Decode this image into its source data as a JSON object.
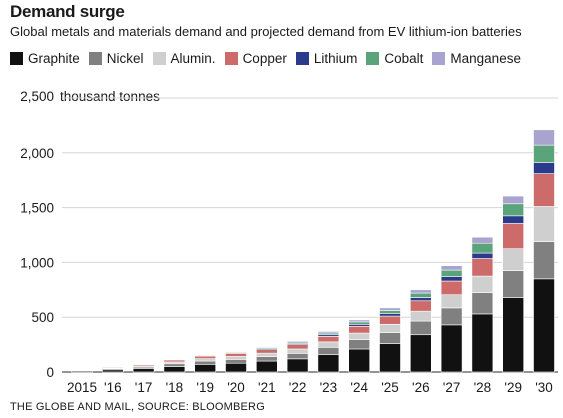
{
  "title": "Demand surge",
  "subtitle": "Global metals and materials demand and projected demand from EV lithium-ion batteries",
  "footer": "THE GLOBE AND MAIL,  SOURCE: BLOOMBERG",
  "chart_data": {
    "type": "bar",
    "stacked": true,
    "title": "Demand surge",
    "subtitle": "Global metals and materials demand and projected demand from EV lithium-ion batteries",
    "unit_label": "thousand tonnes",
    "xlabel": "",
    "ylabel": "",
    "ylim": [
      0,
      2500
    ],
    "yticks": [
      0,
      500,
      1000,
      1500,
      2000,
      2500
    ],
    "ytick_labels": [
      "0",
      "500",
      "1,000",
      "1,500",
      "2,000",
      "2,500"
    ],
    "grid": true,
    "legend_position": "top",
    "categories": [
      "2015",
      "'16",
      "'17",
      "'18",
      "'19",
      "'20",
      "'21",
      "'22",
      "'23",
      "'24",
      "'25",
      "'26",
      "'27",
      "'28",
      "'29",
      "'30"
    ],
    "series": [
      {
        "name": "Graphite",
        "color": "#111111",
        "values": [
          10,
          20,
          30,
          50,
          70,
          80,
          100,
          120,
          160,
          210,
          260,
          340,
          430,
          530,
          680,
          850
        ]
      },
      {
        "name": "Nickel",
        "color": "#808080",
        "values": [
          5,
          10,
          15,
          25,
          30,
          35,
          40,
          50,
          65,
          85,
          100,
          125,
          155,
          195,
          245,
          340
        ]
      },
      {
        "name": "Alumin.",
        "color": "#cfcfcf",
        "values": [
          3,
          6,
          10,
          17,
          22,
          27,
          32,
          40,
          50,
          60,
          75,
          90,
          120,
          150,
          200,
          320
        ]
      },
      {
        "name": "Copper",
        "color": "#cd6b6b",
        "values": [
          4,
          7,
          11,
          18,
          23,
          28,
          32,
          40,
          50,
          62,
          75,
          95,
          125,
          160,
          230,
          300
        ]
      },
      {
        "name": "Lithium",
        "color": "#2c3a8c",
        "values": [
          1,
          2,
          3,
          5,
          6,
          7,
          9,
          11,
          15,
          18,
          22,
          30,
          40,
          50,
          70,
          100
        ]
      },
      {
        "name": "Cobalt",
        "color": "#5ba37a",
        "values": [
          1,
          2,
          3,
          4,
          6,
          7,
          9,
          12,
          16,
          22,
          30,
          40,
          60,
          90,
          110,
          160
        ]
      },
      {
        "name": "Manganese",
        "color": "#a8a4cf",
        "values": [
          1,
          2,
          3,
          4,
          5,
          6,
          7,
          9,
          14,
          18,
          23,
          30,
          40,
          55,
          70,
          140
        ]
      }
    ]
  }
}
